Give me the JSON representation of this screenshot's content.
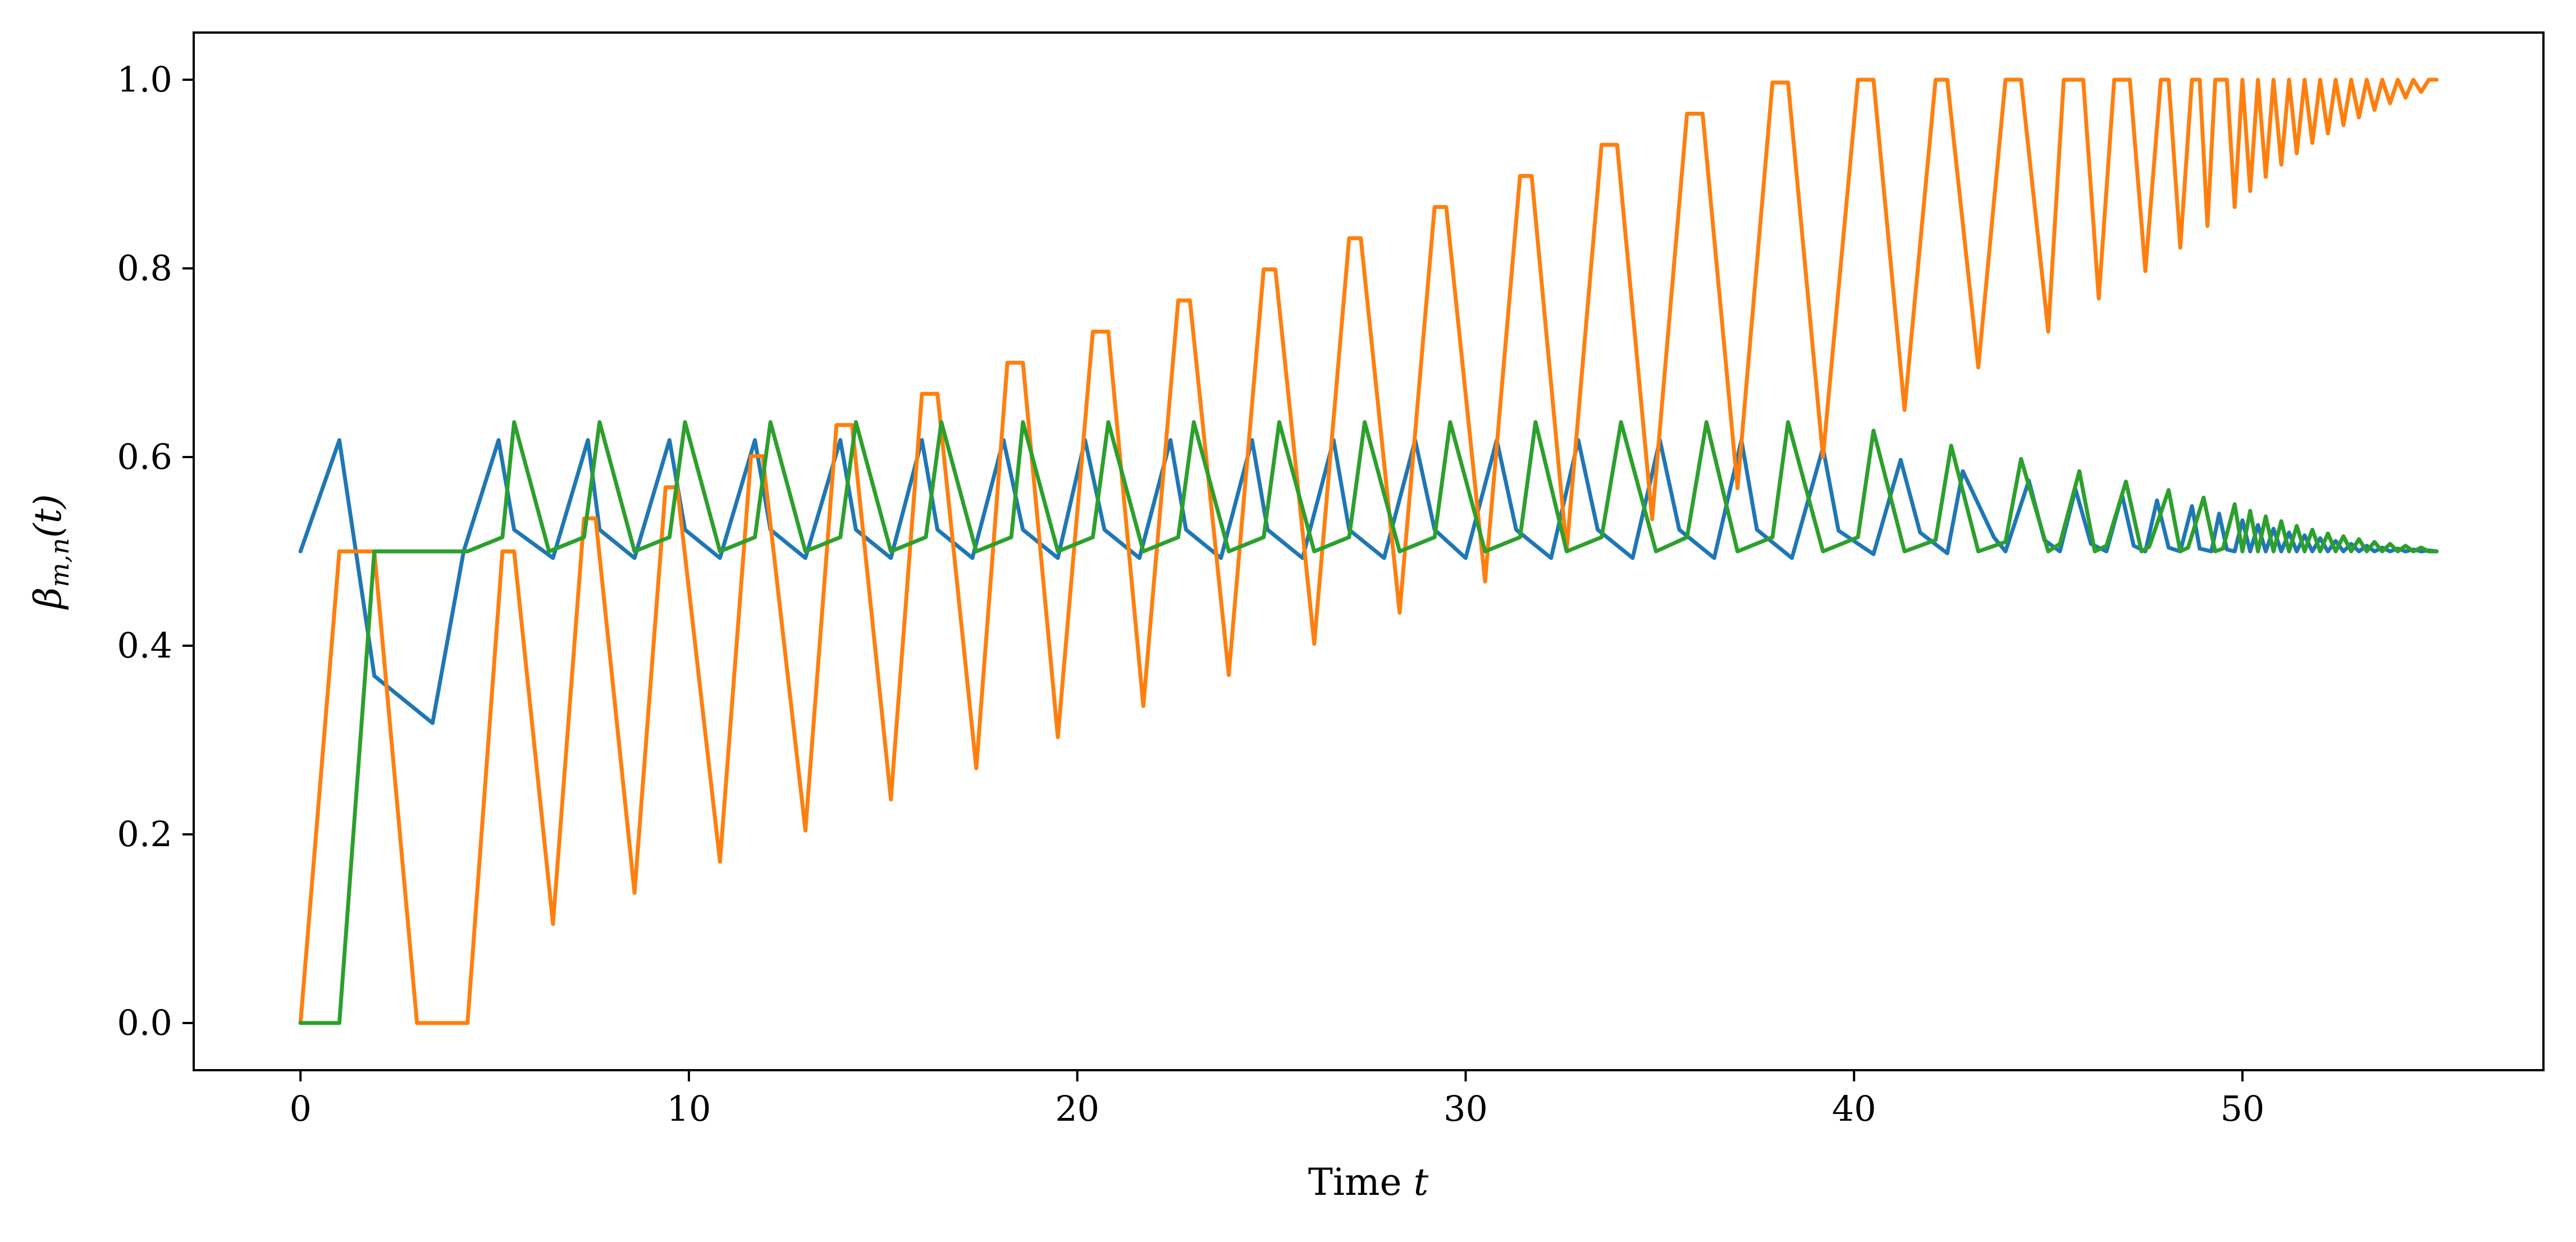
{
  "chart_data": {
    "type": "line",
    "title": "",
    "xlabel": "Time t",
    "ylabel": "β_{m,n}(t)",
    "xlim": [
      -2.75,
      57.75
    ],
    "ylim": [
      -0.05,
      1.05
    ],
    "xticks": [
      0,
      10,
      20,
      30,
      40,
      50
    ],
    "yticks": [
      0.0,
      0.2,
      0.4,
      0.6,
      0.8,
      1.0
    ],
    "xtick_labels": [
      "0",
      "10",
      "20",
      "30",
      "40",
      "50"
    ],
    "ytick_labels": [
      "0.0",
      "0.2",
      "0.4",
      "0.6",
      "0.8",
      "1.0"
    ],
    "grid": false,
    "legend": "none",
    "series": [
      {
        "name": "blue",
        "color": "#1f77b4",
        "x": [
          0,
          1.0,
          1.9,
          3.4,
          4.2,
          5.1,
          5.5,
          6.5,
          7.4,
          7.7,
          8.6,
          9.5,
          9.9,
          10.8,
          11.7,
          12.1,
          13.0,
          13.9,
          14.3,
          15.2,
          16.0,
          16.4,
          17.3,
          18.1,
          18.6,
          19.5,
          20.2,
          20.7,
          21.6,
          22.4,
          22.8,
          23.7,
          24.5,
          24.9,
          25.8,
          26.6,
          27.0,
          27.9,
          28.7,
          29.2,
          30.0,
          30.8,
          31.3,
          32.2,
          32.9,
          33.4,
          34.3,
          35.0,
          35.5,
          36.4,
          37.1,
          37.5,
          38.4,
          39.2,
          39.6,
          40.5,
          41.2,
          41.7,
          42.4,
          42.8,
          43.6,
          43.9,
          44.5,
          44.9,
          45.3,
          45.7,
          46.1,
          46.5,
          46.9,
          47.2,
          47.5,
          47.8,
          48.1,
          48.4,
          48.7,
          48.9,
          49.2,
          49.4,
          49.6,
          49.8,
          50.0,
          50.2,
          50.4,
          50.6,
          50.8,
          51.0,
          51.2,
          51.4,
          51.6,
          51.8,
          52.0,
          52.2,
          52.4,
          52.6,
          52.8,
          53.0,
          53.2,
          53.4,
          53.6,
          53.8,
          54.0,
          54.2,
          54.4,
          54.6,
          54.8,
          55.0
        ],
        "values": [
          0.5,
          0.618,
          0.368,
          0.318,
          0.5,
          0.618,
          0.523,
          0.493,
          0.618,
          0.523,
          0.493,
          0.618,
          0.523,
          0.493,
          0.618,
          0.523,
          0.493,
          0.618,
          0.523,
          0.493,
          0.618,
          0.523,
          0.493,
          0.618,
          0.523,
          0.493,
          0.618,
          0.523,
          0.493,
          0.618,
          0.523,
          0.493,
          0.618,
          0.523,
          0.493,
          0.618,
          0.523,
          0.493,
          0.618,
          0.523,
          0.493,
          0.618,
          0.523,
          0.493,
          0.618,
          0.523,
          0.493,
          0.618,
          0.523,
          0.493,
          0.618,
          0.523,
          0.493,
          0.61,
          0.522,
          0.497,
          0.597,
          0.52,
          0.498,
          0.585,
          0.515,
          0.5,
          0.575,
          0.512,
          0.5,
          0.566,
          0.508,
          0.5,
          0.56,
          0.506,
          0.5,
          0.554,
          0.504,
          0.5,
          0.548,
          0.503,
          0.5,
          0.54,
          0.502,
          0.5,
          0.533,
          0.5,
          0.528,
          0.5,
          0.524,
          0.5,
          0.52,
          0.5,
          0.517,
          0.5,
          0.514,
          0.5,
          0.511,
          0.5,
          0.508,
          0.5,
          0.506,
          0.5,
          0.504,
          0.5,
          0.503,
          0.5,
          0.502,
          0.5,
          0.501,
          0.5
        ]
      },
      {
        "name": "orange",
        "color": "#ff7f0e",
        "x": [
          0,
          1.0,
          1.9,
          3.0,
          4.3,
          5.2,
          5.5,
          6.5,
          7.3,
          7.6,
          8.6,
          9.4,
          9.7,
          10.8,
          11.6,
          11.9,
          13.0,
          13.8,
          14.2,
          15.2,
          16.0,
          16.4,
          17.4,
          18.2,
          18.6,
          19.5,
          20.4,
          20.8,
          21.7,
          22.6,
          22.9,
          23.9,
          24.8,
          25.1,
          26.1,
          27.0,
          27.3,
          28.3,
          29.2,
          29.5,
          30.5,
          31.4,
          31.7,
          32.6,
          33.5,
          33.9,
          34.8,
          35.7,
          36.1,
          37.0,
          37.9,
          38.3,
          39.2,
          40.1,
          40.5,
          41.3,
          42.1,
          42.4,
          43.2,
          43.9,
          44.3,
          45.0,
          45.4,
          45.9,
          46.3,
          46.7,
          47.1,
          47.5,
          47.9,
          48.1,
          48.4,
          48.7,
          48.9,
          49.1,
          49.3,
          49.6,
          49.8,
          50.0,
          50.2,
          50.4,
          50.6,
          50.8,
          51.0,
          51.2,
          51.4,
          51.6,
          51.8,
          52.0,
          52.2,
          52.4,
          52.6,
          52.8,
          53.0,
          53.2,
          53.4,
          53.6,
          53.8,
          54.0,
          54.2,
          54.4,
          54.6,
          54.8,
          55.0
        ],
        "values": [
          0.0,
          0.5,
          0.5,
          0.0,
          0.0,
          0.5,
          0.5,
          0.105,
          0.535,
          0.535,
          0.138,
          0.568,
          0.568,
          0.171,
          0.601,
          0.601,
          0.204,
          0.634,
          0.634,
          0.237,
          0.667,
          0.667,
          0.27,
          0.7,
          0.7,
          0.303,
          0.733,
          0.733,
          0.336,
          0.766,
          0.766,
          0.369,
          0.799,
          0.799,
          0.402,
          0.832,
          0.832,
          0.435,
          0.865,
          0.865,
          0.468,
          0.898,
          0.898,
          0.501,
          0.931,
          0.931,
          0.534,
          0.964,
          0.964,
          0.567,
          0.997,
          0.997,
          0.6,
          1.0,
          1.0,
          0.65,
          1.0,
          1.0,
          0.695,
          1.0,
          1.0,
          0.733,
          1.0,
          1.0,
          0.768,
          1.0,
          1.0,
          0.797,
          1.0,
          1.0,
          0.822,
          1.0,
          1.0,
          0.845,
          1.0,
          1.0,
          0.865,
          1.0,
          0.882,
          1.0,
          0.897,
          1.0,
          0.91,
          1.0,
          0.922,
          1.0,
          0.933,
          1.0,
          0.943,
          1.0,
          0.952,
          1.0,
          0.96,
          1.0,
          0.968,
          1.0,
          0.975,
          1.0,
          0.981,
          1.0,
          0.987,
          1.0,
          1.0
        ]
      },
      {
        "name": "green",
        "color": "#2ca02c",
        "x": [
          0,
          1.0,
          1.9,
          4.3,
          5.2,
          5.5,
          6.4,
          7.3,
          7.7,
          8.6,
          9.5,
          9.9,
          10.8,
          11.7,
          12.1,
          13.0,
          13.9,
          14.3,
          15.2,
          16.1,
          16.5,
          17.4,
          18.3,
          18.6,
          19.5,
          20.4,
          20.8,
          21.7,
          22.6,
          23.0,
          23.9,
          24.8,
          25.2,
          26.1,
          27.0,
          27.4,
          28.3,
          29.2,
          29.6,
          30.5,
          31.4,
          31.8,
          32.6,
          33.5,
          34.0,
          34.9,
          35.7,
          36.2,
          37.0,
          37.9,
          38.3,
          39.2,
          40.1,
          40.5,
          41.3,
          42.1,
          42.5,
          43.2,
          43.9,
          44.3,
          45.0,
          45.3,
          45.8,
          46.2,
          46.5,
          47.0,
          47.4,
          47.6,
          48.1,
          48.4,
          48.6,
          49.0,
          49.3,
          49.5,
          49.8,
          50.0,
          50.2,
          50.4,
          50.6,
          50.8,
          51.0,
          51.2,
          51.4,
          51.6,
          51.8,
          52.0,
          52.2,
          52.4,
          52.6,
          52.8,
          53.0,
          53.2,
          53.4,
          53.6,
          53.8,
          54.0,
          54.2,
          54.4,
          54.6,
          54.8,
          55.0
        ],
        "values": [
          0.0,
          0.0,
          0.5,
          0.5,
          0.515,
          0.637,
          0.5,
          0.515,
          0.637,
          0.5,
          0.515,
          0.637,
          0.5,
          0.515,
          0.637,
          0.5,
          0.515,
          0.637,
          0.5,
          0.515,
          0.637,
          0.5,
          0.515,
          0.637,
          0.5,
          0.515,
          0.637,
          0.5,
          0.515,
          0.637,
          0.5,
          0.515,
          0.637,
          0.5,
          0.515,
          0.637,
          0.5,
          0.515,
          0.637,
          0.5,
          0.515,
          0.637,
          0.5,
          0.515,
          0.637,
          0.5,
          0.515,
          0.637,
          0.5,
          0.515,
          0.637,
          0.5,
          0.515,
          0.628,
          0.5,
          0.512,
          0.612,
          0.5,
          0.51,
          0.598,
          0.5,
          0.508,
          0.585,
          0.5,
          0.506,
          0.574,
          0.5,
          0.505,
          0.565,
          0.5,
          0.504,
          0.557,
          0.5,
          0.503,
          0.55,
          0.5,
          0.543,
          0.5,
          0.537,
          0.5,
          0.532,
          0.5,
          0.527,
          0.5,
          0.523,
          0.5,
          0.519,
          0.5,
          0.516,
          0.5,
          0.513,
          0.5,
          0.51,
          0.5,
          0.508,
          0.5,
          0.506,
          0.5,
          0.504,
          0.5,
          0.5
        ]
      }
    ]
  }
}
